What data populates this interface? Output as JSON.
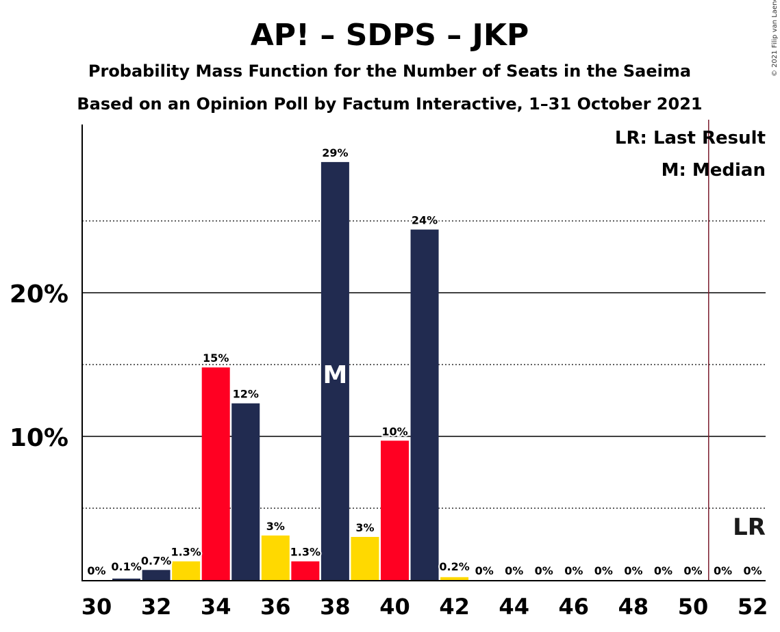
{
  "chart_data": {
    "type": "bar",
    "title": "AP! – SDPS – JKP",
    "subtitle_1": "Probability Mass Function for the Number of Seats in the Saeima",
    "subtitle_2": "Based on an Opinion Poll by Factum Interactive, 1–31 October 2021",
    "copyright": "© 2021 Filip van Laenen",
    "legend": [
      "LR: Last Result",
      "M: Median"
    ],
    "x": [
      30,
      31,
      32,
      33,
      34,
      35,
      36,
      37,
      38,
      39,
      40,
      41,
      42,
      43,
      44,
      45,
      46,
      47,
      48,
      49,
      50,
      51,
      52
    ],
    "values": [
      0,
      0.1,
      0.7,
      1.3,
      14.8,
      12.3,
      3.1,
      1.3,
      29.1,
      3.0,
      9.7,
      24.4,
      0.2,
      0,
      0,
      0,
      0,
      0,
      0,
      0,
      0,
      0,
      0
    ],
    "data_labels": [
      "0%",
      "0.1%",
      "0.7%",
      "1.3%",
      "15%",
      "12%",
      "3%",
      "1.3%",
      "29%",
      "3%",
      "10%",
      "24%",
      "0.2%",
      "0%",
      "0%",
      "0%",
      "0%",
      "0%",
      "0%",
      "0%",
      "0%",
      "0%",
      "0%"
    ],
    "colors_cycle": [
      "#212B50",
      "#212B50",
      "#212B50",
      "#FFD900",
      "#FF0022",
      "#212B50",
      "#FFD900",
      "#FF0022",
      "#212B50",
      "#FFD900",
      "#FF0022",
      "#212B50",
      "#FFD900",
      "#FF0022",
      "#212B50",
      "#FFD900",
      "#FF0022",
      "#212B50",
      "#FFD900",
      "#FF0022",
      "#212B50",
      "#FFD900",
      "#FF0022"
    ],
    "x_tick_labels": [
      "30",
      "32",
      "34",
      "36",
      "38",
      "40",
      "42",
      "44",
      "46",
      "48",
      "50",
      "52"
    ],
    "y_tick_labels": [
      "10%",
      "20%"
    ],
    "ylim": [
      0,
      31
    ],
    "grid": "solid at 10% and 20%, dotted at 5%, 15%, 25%",
    "median_seats": 38,
    "median_marker": "M",
    "last_result_seats": 51,
    "last_result_marker": "LR",
    "last_result_line_color": "#7B1D2E"
  }
}
